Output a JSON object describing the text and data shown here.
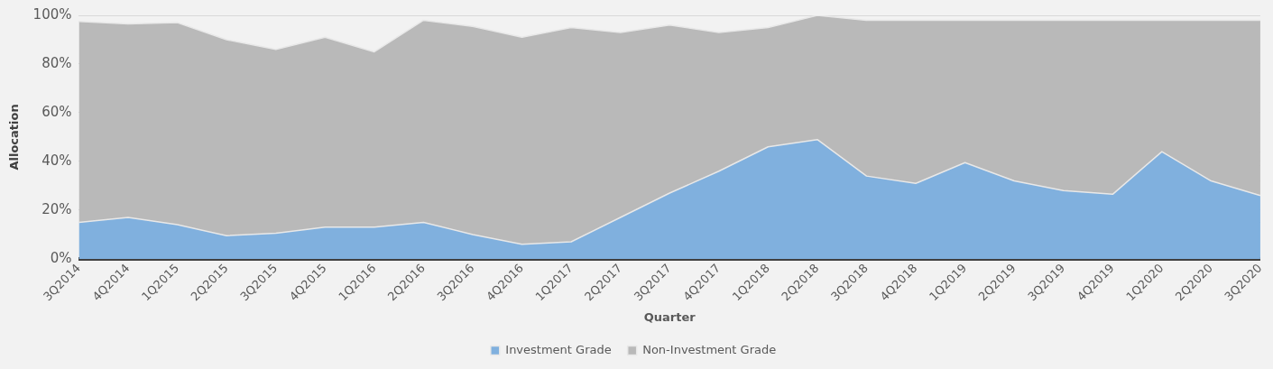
{
  "chart_data": {
    "type": "area",
    "stacked": true,
    "xlabel": "Quarter",
    "ylabel": "Allocation",
    "categories": [
      "3Q2014",
      "4Q2014",
      "1Q2015",
      "2Q2015",
      "3Q2015",
      "4Q2015",
      "1Q2016",
      "2Q2016",
      "3Q2016",
      "4Q2016",
      "1Q2017",
      "2Q2017",
      "3Q2017",
      "4Q2017",
      "1Q2018",
      "2Q2018",
      "3Q2018",
      "4Q2018",
      "1Q2019",
      "2Q2019",
      "3Q2019",
      "4Q2019",
      "1Q2020",
      "2Q2020",
      "3Q2020"
    ],
    "series": [
      {
        "name": "Investment Grade",
        "color": "#80b0de",
        "values": [
          15,
          17,
          14,
          9.5,
          10.5,
          13,
          13,
          15,
          10,
          6,
          7,
          17,
          27,
          36,
          46,
          49,
          34,
          31,
          39.5,
          32,
          28,
          26.5,
          44,
          32,
          26
        ]
      },
      {
        "name": "Non-Investment Grade",
        "color": "#b9b9b9",
        "values": [
          82.5,
          79.5,
          83,
          80.5,
          75.5,
          78,
          72,
          83,
          85.5,
          85,
          88,
          76,
          69,
          57,
          49,
          51,
          64,
          67,
          58.5,
          66,
          70,
          71.5,
          54,
          66,
          72
        ]
      }
    ],
    "ylim": [
      0,
      100
    ],
    "yticks": [
      {
        "value": 0,
        "label": "0%"
      },
      {
        "value": 20,
        "label": "20%"
      },
      {
        "value": 40,
        "label": "40%"
      },
      {
        "value": 60,
        "label": "60%"
      },
      {
        "value": 80,
        "label": "80%"
      },
      {
        "value": 100,
        "label": "100%"
      }
    ],
    "grid": "y",
    "legend": "bottom"
  }
}
